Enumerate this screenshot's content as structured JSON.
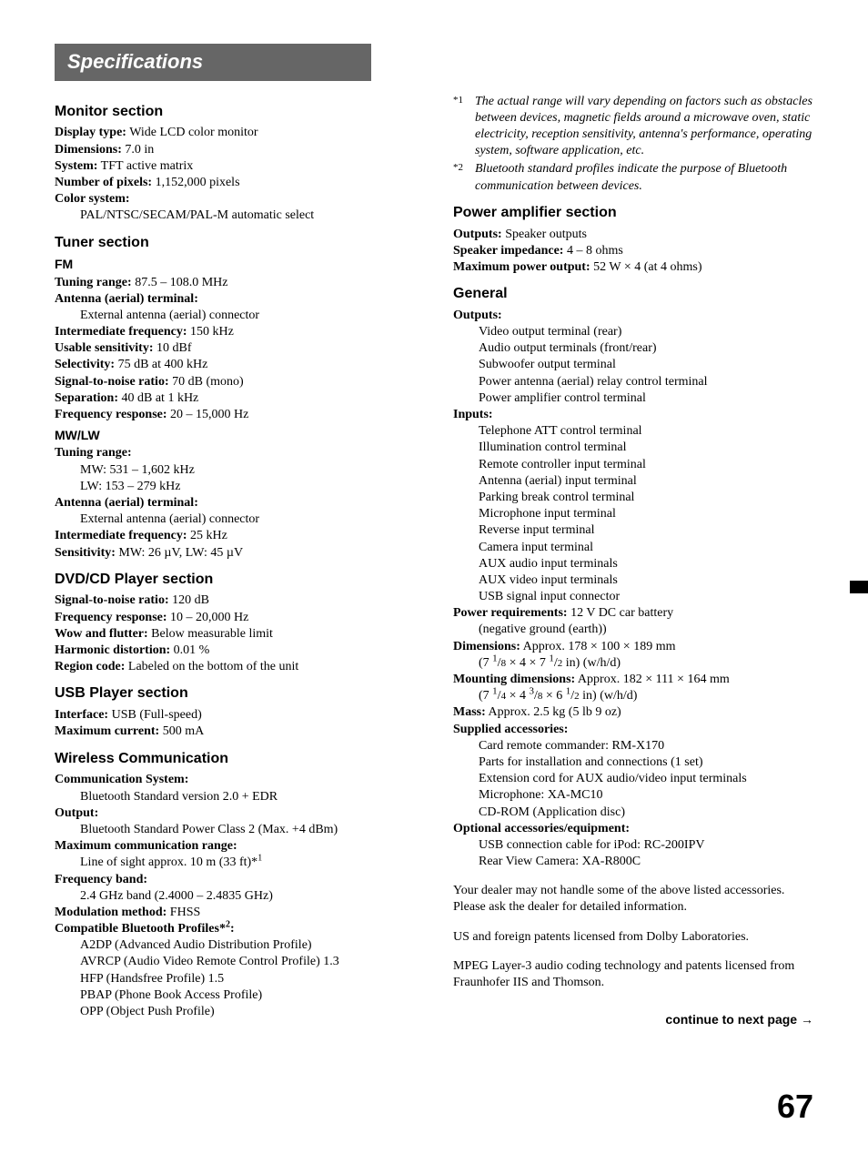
{
  "title": "Specifications",
  "pageNumber": "67",
  "continueText": "continue to next page →",
  "left": {
    "monitor": {
      "heading": "Monitor section",
      "items": [
        {
          "label": "Display type:",
          "value": " Wide LCD color monitor"
        },
        {
          "label": "Dimensions:",
          "value": " 7.0 in"
        },
        {
          "label": "System:",
          "value": " TFT active matrix"
        },
        {
          "label": "Number of pixels:",
          "value": " 1,152,000 pixels"
        },
        {
          "label": "Color system:",
          "value": ""
        }
      ],
      "colorSystemIndent": "PAL/NTSC/SECAM/PAL-M automatic select"
    },
    "tuner": {
      "heading": "Tuner section",
      "fm": {
        "sub": "FM",
        "items": [
          {
            "label": "Tuning range:",
            "value": " 87.5 – 108.0 MHz"
          },
          {
            "label": "Antenna (aerial) terminal:",
            "value": ""
          }
        ],
        "antennaIndent": "External antenna (aerial) connector",
        "items2": [
          {
            "label": "Intermediate frequency:",
            "value": " 150 kHz"
          },
          {
            "label": "Usable sensitivity:",
            "value": " 10 dBf"
          },
          {
            "label": "Selectivity:",
            "value": " 75 dB at 400 kHz"
          },
          {
            "label": "Signal-to-noise ratio:",
            "value": " 70 dB (mono)"
          },
          {
            "label": "Separation:",
            "value": " 40 dB at 1 kHz"
          },
          {
            "label": "Frequency response:",
            "value": " 20 – 15,000 Hz"
          }
        ]
      },
      "mwlw": {
        "sub": "MW/LW",
        "tuningLabel": "Tuning range:",
        "tuningLines": [
          "MW: 531 – 1,602 kHz",
          "LW: 153 – 279 kHz"
        ],
        "antennaLabel": "Antenna (aerial) terminal:",
        "antennaIndent": "External antenna (aerial) connector",
        "items": [
          {
            "label": "Intermediate frequency:",
            "value": " 25 kHz"
          },
          {
            "label": "Sensitivity:",
            "value": " MW: 26 µV, LW: 45 µV"
          }
        ]
      }
    },
    "dvd": {
      "heading": "DVD/CD Player section",
      "items": [
        {
          "label": "Signal-to-noise ratio:",
          "value": " 120 dB"
        },
        {
          "label": "Frequency response:",
          "value": " 10 – 20,000 Hz"
        },
        {
          "label": "Wow and flutter:",
          "value": " Below measurable limit"
        },
        {
          "label": "Harmonic distortion:",
          "value": " 0.01 %"
        },
        {
          "label": "Region code:",
          "value": " Labeled on the bottom of the unit"
        }
      ]
    },
    "usb": {
      "heading": "USB Player section",
      "items": [
        {
          "label": "Interface:",
          "value": " USB (Full-speed)"
        },
        {
          "label": "Maximum current:",
          "value": " 500 mA"
        }
      ]
    },
    "wireless": {
      "heading": "Wireless Communication",
      "commLabel": "Communication System:",
      "commIndent": "Bluetooth Standard version 2.0 + EDR",
      "outputLabel": "Output:",
      "outputIndent": "Bluetooth Standard Power Class 2 (Max. +4 dBm)",
      "rangeLabel": "Maximum communication range:",
      "rangePrefix": "Line of sight approx. 10 m (33 ft)*",
      "rangeSup": "1",
      "freqLabel": "Frequency band:",
      "freqIndent": "2.4 GHz band (2.4000 – 2.4835 GHz)",
      "modItem": {
        "label": "Modulation method:",
        "value": " FHSS"
      },
      "profilesLabelPrefix": "Compatible Bluetooth Profiles",
      "profilesStar": "*",
      "profilesSup": "2",
      "profilesColon": ":",
      "profilesList": [
        "A2DP (Advanced Audio Distribution Profile)",
        "AVRCP (Audio Video Remote Control Profile) 1.3",
        "HFP (Handsfree Profile) 1.5",
        "PBAP (Phone Book Access Profile)",
        "OPP (Object Push Profile)"
      ]
    }
  },
  "right": {
    "footnotes": [
      {
        "mark": "*1",
        "text": "The actual range will vary depending on factors such as obstacles between devices, magnetic fields around a microwave oven, static electricity, reception sensitivity, antenna's performance, operating system, software application, etc."
      },
      {
        "mark": "*2",
        "text": "Bluetooth standard profiles indicate the purpose of Bluetooth communication between devices."
      }
    ],
    "amp": {
      "heading": "Power amplifier section",
      "items": [
        {
          "label": "Outputs:",
          "value": " Speaker outputs"
        },
        {
          "label": "Speaker impedance:",
          "value": " 4 – 8 ohms"
        },
        {
          "label": "Maximum power output:",
          "value": " 52 W × 4 (at 4 ohms)"
        }
      ]
    },
    "general": {
      "heading": "General",
      "outputsLabel": "Outputs:",
      "outputsList": [
        "Video output terminal (rear)",
        "Audio output terminals (front/rear)",
        "Subwoofer output terminal",
        "Power antenna (aerial) relay control terminal",
        "Power amplifier control terminal"
      ],
      "inputsLabel": "Inputs:",
      "inputsList": [
        "Telephone ATT control terminal",
        "Illumination control terminal",
        "Remote controller input terminal",
        "Antenna (aerial) input terminal",
        "Parking break control terminal",
        "Microphone input terminal",
        "Reverse input terminal",
        "Camera input terminal",
        "AUX audio input terminals",
        "AUX video input terminals",
        "USB signal input connector"
      ],
      "power": {
        "label": "Power requirements:",
        "value": " 12 V DC car battery"
      },
      "powerIndent": "(negative ground (earth))",
      "dim": {
        "label": "Dimensions:",
        "value": " Approx. 178 × 100 × 189 mm"
      },
      "dimIndentParts": {
        "p1": "(7 ",
        "n1": "1",
        "d1": "8",
        "p2": " × 4 × 7 ",
        "n2": "1",
        "d2": "2",
        "p3": " in) (w/h/d)"
      },
      "mount": {
        "label": "Mounting dimensions:",
        "value": " Approx. 182 × 111 × 164 mm"
      },
      "mountIndentParts": {
        "p1": "(7 ",
        "n1": "1",
        "d1": "4",
        "p2": " × 4 ",
        "n2": "3",
        "d2": "8",
        "p3": " × 6 ",
        "n3": "1",
        "d3": "2",
        "p4": " in) (w/h/d)"
      },
      "mass": {
        "label": "Mass:",
        "value": " Approx. 2.5 kg (5 lb 9 oz)"
      },
      "suppliedLabel": "Supplied accessories:",
      "suppliedList": [
        "Card remote commander: RM-X170",
        "Parts for installation and connections (1 set)",
        "Extension cord for AUX audio/video input terminals",
        "Microphone: XA-MC10",
        "CD-ROM (Application disc)"
      ],
      "optionalLabel": "Optional accessories/equipment:",
      "optionalList": [
        "USB connection cable for iPod: RC-200IPV",
        "Rear View Camera: XA-R800C"
      ]
    },
    "paras": [
      "Your dealer may not handle some of the above listed accessories. Please ask the dealer for detailed information.",
      "US and foreign patents licensed from Dolby Laboratories.",
      "MPEG Layer-3 audio coding technology and patents licensed from Fraunhofer IIS and Thomson."
    ]
  }
}
